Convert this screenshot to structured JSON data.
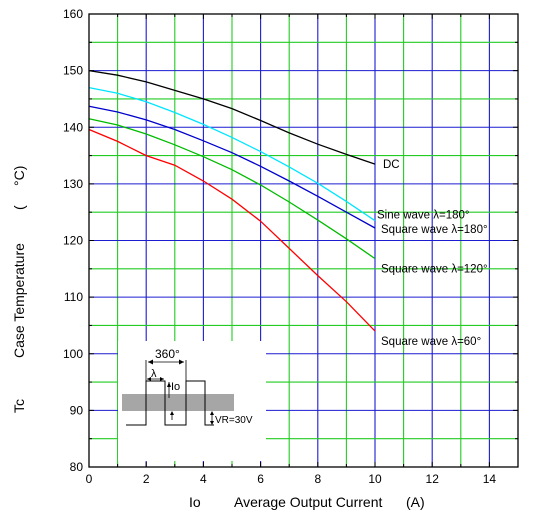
{
  "chart_data": {
    "type": "line",
    "xlabel_symbol": "Io",
    "xlabel": "Average Output Current",
    "xlabel_unit": "(A)",
    "ylabel_symbol": "Tc",
    "ylabel": "Case Temperature",
    "ylabel_unit_open": "(",
    "ylabel_unit": "°C)",
    "xlim": [
      0,
      15
    ],
    "ylim": [
      80,
      160
    ],
    "x_ticks": [
      "0",
      "2",
      "4",
      "6",
      "8",
      "10",
      "12",
      "14"
    ],
    "y_ticks": [
      "80",
      "90",
      "100",
      "110",
      "120",
      "130",
      "140",
      "150",
      "160"
    ],
    "grid": true,
    "series": [
      {
        "name": "DC",
        "color": "#000000",
        "x": [
          0,
          1,
          2,
          3,
          4,
          5,
          6,
          7,
          8,
          9,
          10
        ],
        "y": [
          150,
          149.2,
          148,
          146.5,
          145,
          143.3,
          141.2,
          139,
          137,
          135.2,
          133.5
        ]
      },
      {
        "name": "Sine wave λ=180°",
        "color": "#00e5ff",
        "x": [
          0,
          1,
          2,
          3,
          4,
          5,
          6,
          7,
          8,
          9,
          10
        ],
        "y": [
          147,
          146,
          144.5,
          142.6,
          140.5,
          138.2,
          135.7,
          133,
          130.1,
          126.9,
          123.5
        ]
      },
      {
        "name": "Square wave λ=180°",
        "color": "#0000cc",
        "x": [
          0,
          1,
          2,
          3,
          4,
          5,
          6,
          7,
          8,
          9,
          10
        ],
        "y": [
          143.7,
          142.7,
          141.3,
          139.6,
          137.6,
          135.5,
          133.1,
          130.5,
          127.8,
          125,
          122.2
        ]
      },
      {
        "name": "Square wave λ=120°",
        "color": "#00bb00",
        "x": [
          0,
          1,
          2,
          3,
          4,
          5,
          6,
          7,
          8,
          9,
          10
        ],
        "y": [
          141.5,
          140.4,
          138.8,
          136.9,
          134.8,
          132.5,
          129.8,
          126.8,
          123.6,
          120.3,
          116.8
        ]
      },
      {
        "name": "Square wave λ=60°",
        "color": "#ff0000",
        "x": [
          0,
          1,
          2,
          3,
          4,
          5,
          6,
          7,
          8,
          9,
          10
        ],
        "y": [
          139.6,
          137.5,
          135,
          133.3,
          130.5,
          127.3,
          123.4,
          118.6,
          113.8,
          109.2,
          104
        ]
      }
    ],
    "inset": {
      "period_label": "360°",
      "lambda_label": "λ",
      "io_label": "Io",
      "vr_label": "VR=30V"
    }
  }
}
